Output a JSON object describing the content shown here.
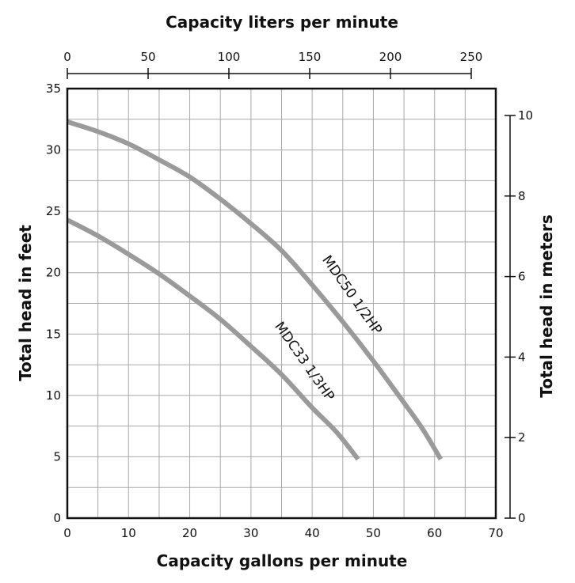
{
  "chart_data": {
    "type": "line",
    "title": "",
    "xlabel": "Capacity gallons per minute",
    "ylabel": "Total head in feet",
    "x2label": "Capacity liters per minute",
    "y2label": "Total head in meters",
    "xlim": [
      0,
      70
    ],
    "ylim": [
      0,
      35
    ],
    "x2lim": [
      0,
      250
    ],
    "y2lim": [
      0,
      10
    ],
    "xticks": [
      0,
      10,
      20,
      30,
      40,
      50,
      60,
      70
    ],
    "yticks": [
      0,
      5,
      10,
      15,
      20,
      25,
      30,
      35
    ],
    "x2ticks": [
      0,
      50,
      100,
      150,
      200,
      250
    ],
    "y2ticks": [
      0,
      2,
      4,
      6,
      8,
      10
    ],
    "grid": true,
    "series": [
      {
        "name": "MDC50 1/2HP",
        "x": [
          0,
          5,
          10,
          15,
          20,
          25,
          30,
          35,
          40,
          45,
          50,
          55,
          58,
          61
        ],
        "y": [
          32.3,
          31.5,
          30.5,
          29.2,
          27.8,
          26.0,
          24.0,
          21.8,
          19.0,
          16.0,
          12.8,
          9.4,
          7.3,
          4.8
        ],
        "label_lines": [
          "MDC50",
          "1/2HP"
        ]
      },
      {
        "name": "MDC33 1/3HP",
        "x": [
          0,
          5,
          10,
          15,
          20,
          25,
          30,
          35,
          40,
          44,
          47.5
        ],
        "y": [
          24.3,
          23.0,
          21.5,
          19.9,
          18.1,
          16.2,
          14.0,
          11.7,
          9.0,
          7.0,
          4.8
        ],
        "label_lines": [
          "MDC33",
          "1/3HP"
        ]
      }
    ],
    "colors": {
      "curve": "#9a9a9a",
      "grid": "#a9a9a9",
      "frame": "#111111"
    }
  }
}
